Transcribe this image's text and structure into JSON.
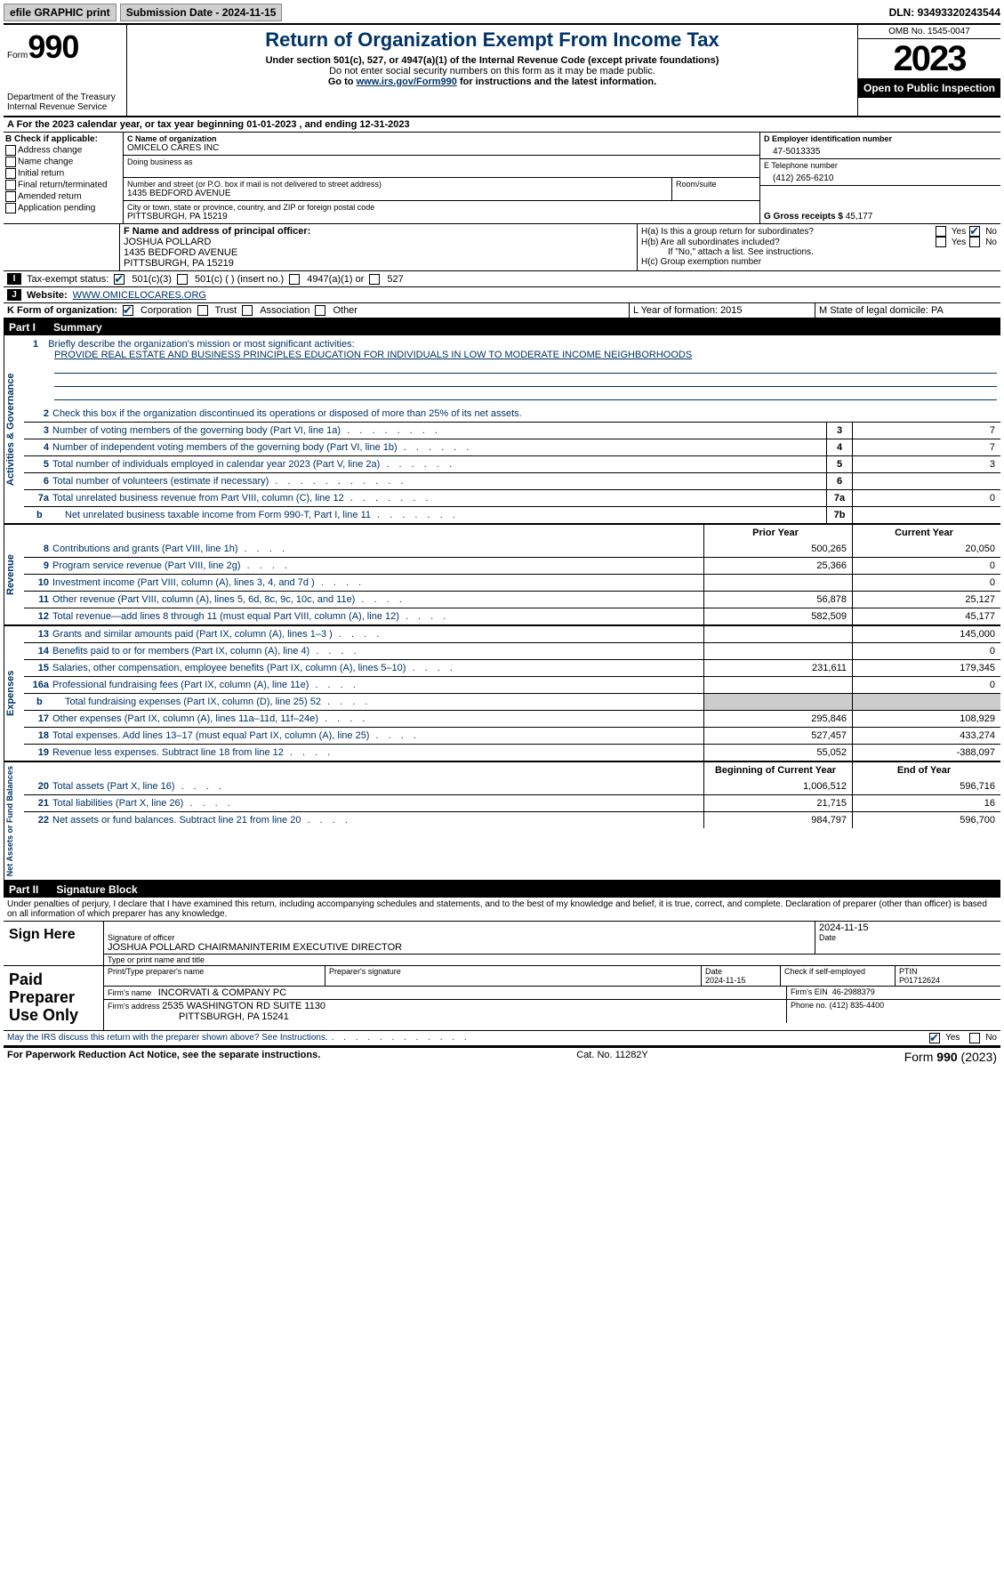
{
  "top": {
    "efile": "efile GRAPHIC print",
    "sub_date_lbl": "Submission Date - ",
    "sub_date": "2024-11-15",
    "dln_lbl": "DLN: ",
    "dln": "93493320243544"
  },
  "header": {
    "form": "Form",
    "num": "990",
    "dept": "Department of the Treasury Internal Revenue Service",
    "title": "Return of Organization Exempt From Income Tax",
    "sub1": "Under section 501(c), 527, or 4947(a)(1) of the Internal Revenue Code (except private foundations)",
    "sub2": "Do not enter social security numbers on this form as it may be made public.",
    "sub3_a": "Go to ",
    "sub3_link": "www.irs.gov/Form990",
    "sub3_b": " for instructions and the latest information.",
    "omb": "OMB No. 1545-0047",
    "year": "2023",
    "open_pub": "Open to Public Inspection"
  },
  "row_a": "A For the 2023 calendar year, or tax year beginning 01-01-2023   , and ending 12-31-2023",
  "box_b": {
    "title": "B Check if applicable:",
    "items": [
      "Address change",
      "Name change",
      "Initial return",
      "Final return/terminated",
      "Amended return",
      "Application pending"
    ]
  },
  "box_c": {
    "name_lbl": "C Name of organization",
    "name": "OMICELO CARES INC",
    "dba_lbl": "Doing business as",
    "street_lbl": "Number and street (or P.O. box if mail is not delivered to street address)",
    "street": "1435 BEDFORD AVENUE",
    "room_lbl": "Room/suite",
    "city_lbl": "City or town, state or province, country, and ZIP or foreign postal code",
    "city": "PITTSBURGH, PA  15219"
  },
  "box_d": {
    "lbl": "D Employer identification number",
    "val": "47-5013335"
  },
  "box_e": {
    "lbl": "E Telephone number",
    "val": "(412) 265-6210"
  },
  "box_g": {
    "lbl": "G Gross receipts $",
    "val": "45,177"
  },
  "box_f": {
    "lbl": "F  Name and address of principal officer:",
    "name": "JOSHUA POLLARD",
    "addr1": "1435 BEDFORD AVENUE",
    "addr2": "PITTSBURGH, PA  15219"
  },
  "box_h": {
    "a": "H(a)  Is this a group return for subordinates?",
    "b": "H(b)  Are all subordinates included?",
    "b_note": "If \"No,\" attach a list. See instructions.",
    "c": "H(c)  Group exemption number",
    "yes": "Yes",
    "no": "No"
  },
  "row_i": {
    "lbl": "Tax-exempt status:",
    "opts": [
      "501(c)(3)",
      "501(c) (  ) (insert no.)",
      "4947(a)(1) or",
      "527"
    ]
  },
  "row_j": {
    "lbl": "Website:",
    "val": "WWW.OMICELOCARES.ORG"
  },
  "row_k": {
    "lbl": "K Form of organization:",
    "opts": [
      "Corporation",
      "Trust",
      "Association",
      "Other"
    ],
    "l": "L Year of formation: 2015",
    "m": "M State of legal domicile: PA"
  },
  "part1": {
    "lbl": "Part I",
    "title": "Summary"
  },
  "mission": {
    "q": "Briefly describe the organization's mission or most significant activities:",
    "txt": "PROVIDE REAL ESTATE AND BUSINESS PRINCIPLES EDUCATION FOR INDIVIDUALS IN LOW TO MODERATE INCOME NEIGHBORHOODS"
  },
  "gov_lines": {
    "l2": "Check this box     if the organization discontinued its operations or disposed of more than 25% of its net assets.",
    "l3": {
      "d": "Number of voting members of the governing body (Part VI, line 1a)",
      "b": "3",
      "v": "7"
    },
    "l4": {
      "d": "Number of independent voting members of the governing body (Part VI, line 1b)",
      "b": "4",
      "v": "7"
    },
    "l5": {
      "d": "Total number of individuals employed in calendar year 2023 (Part V, line 2a)",
      "b": "5",
      "v": "3"
    },
    "l6": {
      "d": "Total number of volunteers (estimate if necessary)",
      "b": "6",
      "v": ""
    },
    "l7a": {
      "d": "Total unrelated business revenue from Part VIII, column (C), line 12",
      "b": "7a",
      "v": "0"
    },
    "l7b": {
      "d": "Net unrelated business taxable income from Form 990-T, Part I, line 11",
      "b": "7b",
      "v": ""
    }
  },
  "col_hdrs": {
    "prior": "Prior Year",
    "curr": "Current Year",
    "boy": "Beginning of Current Year",
    "eoy": "End of Year"
  },
  "rev": [
    {
      "n": "8",
      "d": "Contributions and grants (Part VIII, line 1h)",
      "p": "500,265",
      "c": "20,050"
    },
    {
      "n": "9",
      "d": "Program service revenue (Part VIII, line 2g)",
      "p": "25,366",
      "c": "0"
    },
    {
      "n": "10",
      "d": "Investment income (Part VIII, column (A), lines 3, 4, and 7d )",
      "p": "",
      "c": "0"
    },
    {
      "n": "11",
      "d": "Other revenue (Part VIII, column (A), lines 5, 6d, 8c, 9c, 10c, and 11e)",
      "p": "56,878",
      "c": "25,127"
    },
    {
      "n": "12",
      "d": "Total revenue—add lines 8 through 11 (must equal Part VIII, column (A), line 12)",
      "p": "582,509",
      "c": "45,177"
    }
  ],
  "exp": [
    {
      "n": "13",
      "d": "Grants and similar amounts paid (Part IX, column (A), lines 1–3 )",
      "p": "",
      "c": "145,000"
    },
    {
      "n": "14",
      "d": "Benefits paid to or for members (Part IX, column (A), line 4)",
      "p": "",
      "c": "0"
    },
    {
      "n": "15",
      "d": "Salaries, other compensation, employee benefits (Part IX, column (A), lines 5–10)",
      "p": "231,611",
      "c": "179,345"
    },
    {
      "n": "16a",
      "d": "Professional fundraising fees (Part IX, column (A), line 11e)",
      "p": "",
      "c": "0"
    },
    {
      "n": "b",
      "d": "Total fundraising expenses (Part IX, column (D), line 25) 52",
      "p": "SHADE",
      "c": "SHADE"
    },
    {
      "n": "17",
      "d": "Other expenses (Part IX, column (A), lines 11a–11d, 11f–24e)",
      "p": "295,846",
      "c": "108,929"
    },
    {
      "n": "18",
      "d": "Total expenses. Add lines 13–17 (must equal Part IX, column (A), line 25)",
      "p": "527,457",
      "c": "433,274"
    },
    {
      "n": "19",
      "d": "Revenue less expenses. Subtract line 18 from line 12",
      "p": "55,052",
      "c": "-388,097"
    }
  ],
  "net": [
    {
      "n": "20",
      "d": "Total assets (Part X, line 16)",
      "p": "1,006,512",
      "c": "596,716"
    },
    {
      "n": "21",
      "d": "Total liabilities (Part X, line 26)",
      "p": "21,715",
      "c": "16"
    },
    {
      "n": "22",
      "d": "Net assets or fund balances. Subtract line 21 from line 20",
      "p": "984,797",
      "c": "596,700"
    }
  ],
  "tabs": {
    "gov": "Activities & Governance",
    "rev": "Revenue",
    "exp": "Expenses",
    "net": "Net Assets or Fund Balances"
  },
  "part2": {
    "lbl": "Part II",
    "title": "Signature Block"
  },
  "sig": {
    "decl": "Under penalties of perjury, I declare that I have examined this return, including accompanying schedules and statements, and to the best of my knowledge and belief, it is true, correct, and complete. Declaration of preparer (other than officer) is based on all information of which preparer has any knowledge.",
    "sign_here": "Sign Here",
    "officer_sig_lbl": "Signature of officer",
    "officer_name": "JOSHUA POLLARD CHAIRMANINTERIM EXECUTIVE DIRECTOR",
    "officer_type_lbl": "Type or print name and title",
    "date_lbl": "Date",
    "date": "2024-11-15",
    "paid_hdr": "Paid Preparer Use Only",
    "prep_name_lbl": "Print/Type preparer's name",
    "prep_sig_lbl": "Preparer's signature",
    "prep_date": "2024-11-15",
    "self_emp": "Check      if self-employed",
    "ptin_lbl": "PTIN",
    "ptin": "P01712624",
    "firm_name_lbl": "Firm's name",
    "firm_name": "INCORVATI & COMPANY PC",
    "firm_ein_lbl": "Firm's EIN",
    "firm_ein": "46-2988379",
    "firm_addr_lbl": "Firm's address",
    "firm_addr1": "2535 WASHINGTON RD SUITE 1130",
    "firm_addr2": "PITTSBURGH, PA  15241",
    "phone_lbl": "Phone no.",
    "phone": "(412) 835-4400",
    "discuss": "May the IRS discuss this return with the preparer shown above? See Instructions.",
    "yes": "Yes",
    "no": "No"
  },
  "footer": {
    "l": "For Paperwork Reduction Act Notice, see the separate instructions.",
    "m": "Cat. No. 11282Y",
    "r": "Form 990 (2023)"
  }
}
